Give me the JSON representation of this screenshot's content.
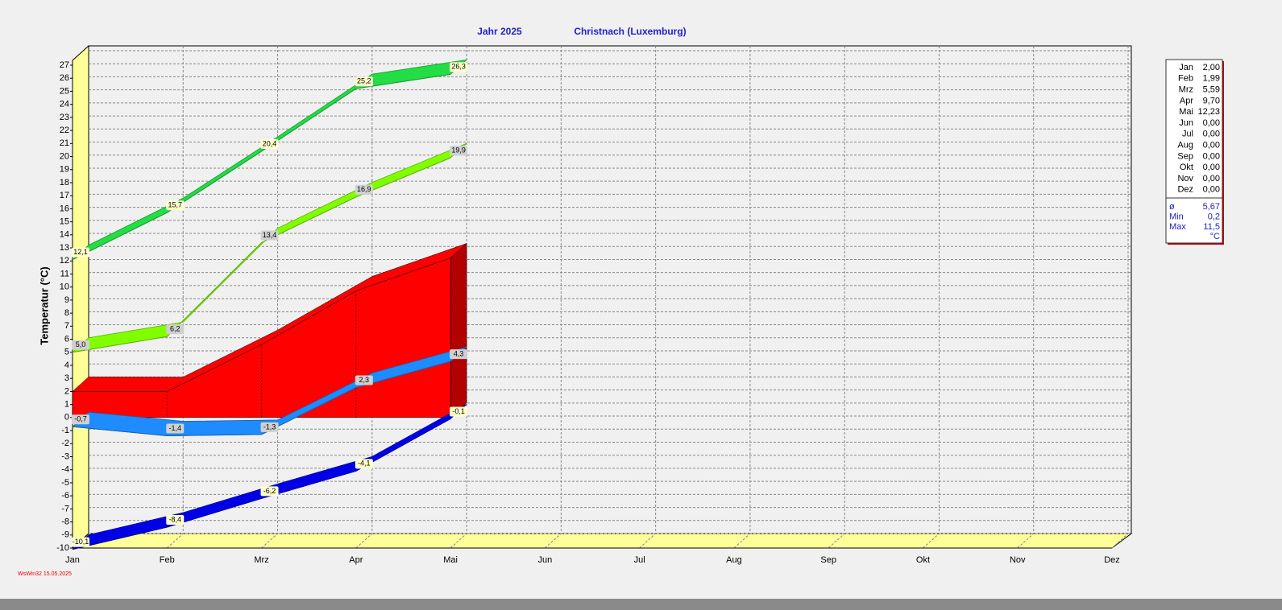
{
  "chart_data": {
    "type": "line",
    "title": "Jahr  2025",
    "subtitle": "Christnach (Luxemburg)",
    "y_label": "Temperatur  (°C)",
    "categories": [
      "Jan",
      "Feb",
      "Mrz",
      "Apr",
      "Mai",
      "Jun",
      "Jul",
      "Aug",
      "Sep",
      "Okt",
      "Nov",
      "Dez"
    ],
    "ylim": [
      -10,
      27
    ],
    "yticks": [
      -10,
      -9,
      -8,
      -7,
      -6,
      -5,
      -4,
      -3,
      -2,
      -1,
      0,
      1,
      2,
      3,
      4,
      5,
      6,
      7,
      8,
      9,
      10,
      11,
      12,
      13,
      14,
      15,
      16,
      17,
      18,
      19,
      20,
      21,
      22,
      23,
      24,
      25,
      26,
      27
    ],
    "grid": true,
    "series": [
      {
        "style": "area",
        "color": "#ff0000",
        "values": [
          2.0,
          1.99,
          5.59,
          9.7,
          12.23,
          null,
          null,
          null,
          null,
          null,
          null,
          null
        ]
      },
      {
        "style": "ribbon",
        "color": "#22dd44",
        "label_color": "#ffffcc",
        "values": [
          12.1,
          15.7,
          20.4,
          25.2,
          26.3,
          null,
          null,
          null,
          null,
          null,
          null,
          null
        ],
        "value_labels": [
          "12,1",
          "15,7",
          "20,4",
          "25,2",
          "26,3",
          null,
          null,
          null,
          null,
          null,
          null,
          null
        ]
      },
      {
        "style": "ribbon",
        "color": "#80ff00",
        "label_color": "#d0d0d0",
        "values": [
          5.0,
          6.2,
          13.4,
          16.9,
          19.9,
          null,
          null,
          null,
          null,
          null,
          null,
          null
        ],
        "value_labels": [
          "5,0",
          "6,2",
          "13,4",
          "16,9",
          "19,9",
          null,
          null,
          null,
          null,
          null,
          null,
          null
        ]
      },
      {
        "style": "ribbon",
        "color": "#1e8cff",
        "label_color": "#d0d0d0",
        "values": [
          -0.7,
          -1.4,
          -1.3,
          2.3,
          4.3,
          null,
          null,
          null,
          null,
          null,
          null,
          null
        ],
        "value_labels": [
          "-0,7",
          "-1,4",
          "-1,3",
          "2,3",
          "4,3",
          null,
          null,
          null,
          null,
          null,
          null,
          null
        ]
      },
      {
        "style": "ribbon",
        "color": "#0000e6",
        "label_color": "#ffffcc",
        "values": [
          -10.1,
          -8.4,
          -6.2,
          -4.1,
          -0.1,
          null,
          null,
          null,
          null,
          null,
          null,
          null
        ],
        "value_labels": [
          "-10,1",
          "-8,4",
          "-6,2",
          "-4,1",
          "-0,1",
          null,
          null,
          null,
          null,
          null,
          null,
          null
        ]
      }
    ]
  },
  "summary_table": {
    "rows": [
      [
        "Jan",
        "2,00"
      ],
      [
        "Feb",
        "1,99"
      ],
      [
        "Mrz",
        "5,59"
      ],
      [
        "Apr",
        "9,70"
      ],
      [
        "Mai",
        "12,23"
      ],
      [
        "Jun",
        "0,00"
      ],
      [
        "Jul",
        "0,00"
      ],
      [
        "Aug",
        "0,00"
      ],
      [
        "Sep",
        "0,00"
      ],
      [
        "Okt",
        "0,00"
      ],
      [
        "Nov",
        "0,00"
      ],
      [
        "Dez",
        "0,00"
      ]
    ],
    "stats": [
      [
        "ø",
        "5,67"
      ],
      [
        "Min",
        "0,2"
      ],
      [
        "Max",
        "11,5"
      ]
    ],
    "unit": "°C"
  },
  "footer": "WsWin32  15.05.2025"
}
